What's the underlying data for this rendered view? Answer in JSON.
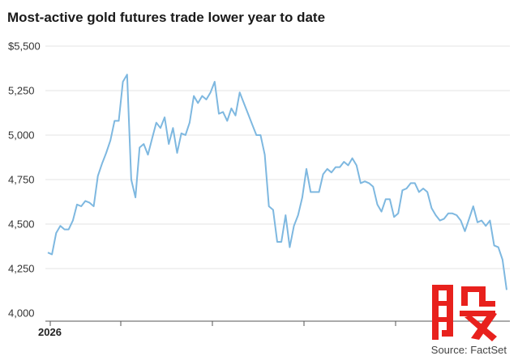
{
  "title": "Most-active gold futures trade lower year to date",
  "source": "Source: FactSet",
  "colors": {
    "line": "#7eb8e0",
    "grid": "#e3e3e3",
    "axis": "#555555",
    "watermark": "#e8211d"
  },
  "chart_data": {
    "type": "line",
    "title": "Most-active gold futures trade lower year to date",
    "xlabel": "",
    "ylabel": "",
    "ylim": [
      4000,
      5500
    ],
    "yticks": [
      4000,
      4250,
      4500,
      4750,
      5000,
      5250,
      5500
    ],
    "ytick_labels": [
      "4,000",
      "4,250",
      "4,500",
      "4,750",
      "5,000",
      "5,250",
      "$5,500"
    ],
    "xticks": [
      "2026"
    ],
    "grid": true,
    "series": [
      {
        "values": [
          4340,
          4330,
          4450,
          4490,
          4470,
          4470,
          4520,
          4610,
          4600,
          4630,
          4620,
          4600,
          4770,
          4840,
          4900,
          4970,
          5080,
          5080,
          5300,
          5340,
          4750,
          4650,
          4930,
          4950,
          4890,
          4980,
          5070,
          5040,
          5100,
          4950,
          5040,
          4900,
          5010,
          5000,
          5070,
          5220,
          5180,
          5220,
          5200,
          5240,
          5300,
          5120,
          5130,
          5080,
          5150,
          5110,
          5240,
          5180,
          5120,
          5060,
          5000,
          5000,
          4890,
          4600,
          4580,
          4400,
          4400,
          4550,
          4370,
          4490,
          4550,
          4650,
          4810,
          4680,
          4680,
          4680,
          4780,
          4810,
          4790,
          4820,
          4820,
          4850,
          4830,
          4870,
          4830,
          4730,
          4740,
          4730,
          4710,
          4610,
          4570,
          4640,
          4640,
          4540,
          4560,
          4690,
          4700,
          4730,
          4730,
          4680,
          4700,
          4680,
          4590,
          4550,
          4520,
          4530,
          4560,
          4560,
          4550,
          4520,
          4460,
          4530,
          4600,
          4510,
          4520,
          4490,
          4520,
          4380,
          4370,
          4300,
          4130
        ]
      }
    ]
  }
}
